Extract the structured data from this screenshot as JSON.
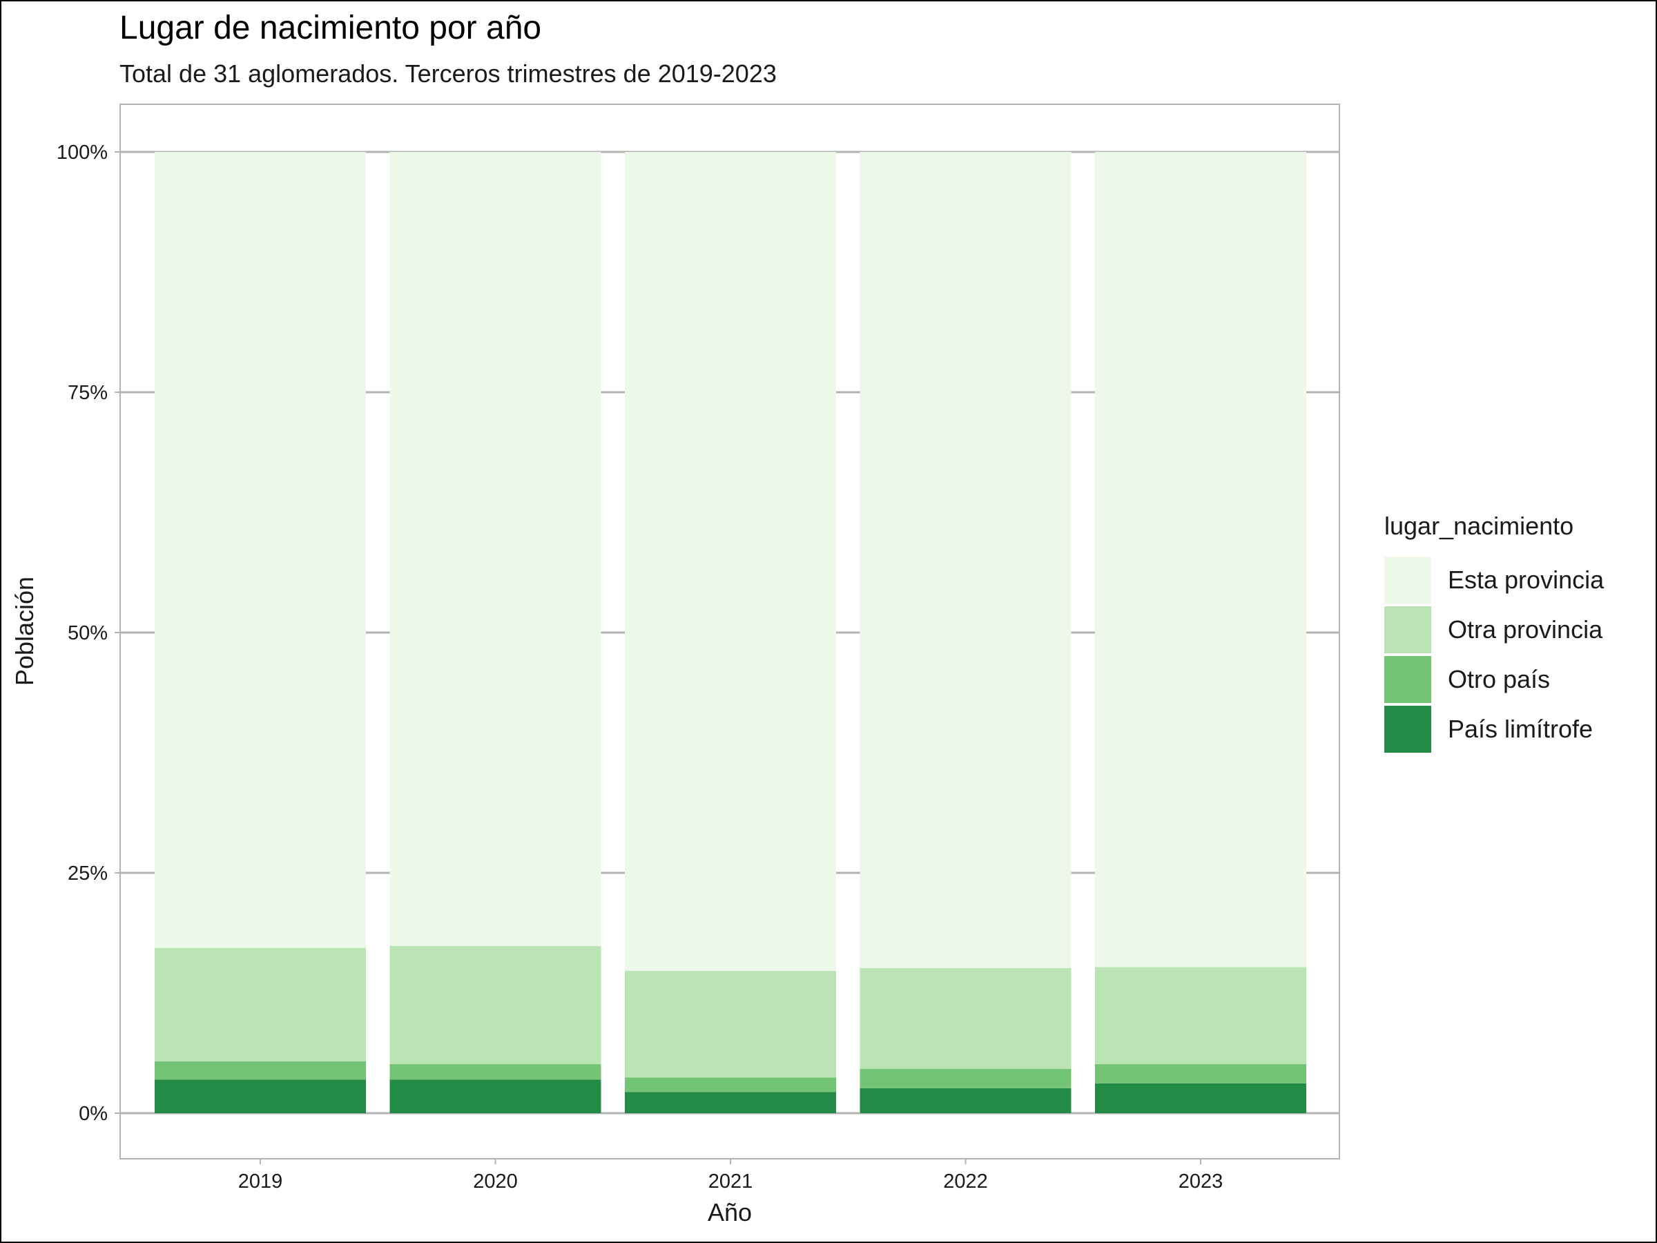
{
  "chart_data": {
    "type": "bar",
    "stacked": true,
    "percent": true,
    "title": "Lugar de nacimiento por año",
    "subtitle": "Total de 31 aglomerados. Terceros trimestres de 2019-2023",
    "xlabel": "Año",
    "ylabel": "Población",
    "ylim": [
      0,
      1
    ],
    "yticks": [
      {
        "value": 0,
        "label": "0%"
      },
      {
        "value": 0.25,
        "label": "25%"
      },
      {
        "value": 0.5,
        "label": "50%"
      },
      {
        "value": 0.75,
        "label": "75%"
      },
      {
        "value": 1,
        "label": "100%"
      }
    ],
    "categories": [
      "2019",
      "2020",
      "2021",
      "2022",
      "2023"
    ],
    "legend_title": "lugar_nacimiento",
    "legend_position": "right",
    "grid": true,
    "series": [
      {
        "name": "País limítrofe",
        "color": "#238b45",
        "values": [
          0.035,
          0.035,
          0.022,
          0.026,
          0.031
        ]
      },
      {
        "name": "Otro país",
        "color": "#74c476",
        "values": [
          0.019,
          0.016,
          0.015,
          0.02,
          0.02
        ]
      },
      {
        "name": "Otra provincia",
        "color": "#bae4b3",
        "values": [
          0.118,
          0.123,
          0.111,
          0.105,
          0.101
        ]
      },
      {
        "name": "Esta provincia",
        "color": "#edf8e9",
        "values": [
          0.828,
          0.826,
          0.852,
          0.849,
          0.848
        ]
      }
    ]
  }
}
